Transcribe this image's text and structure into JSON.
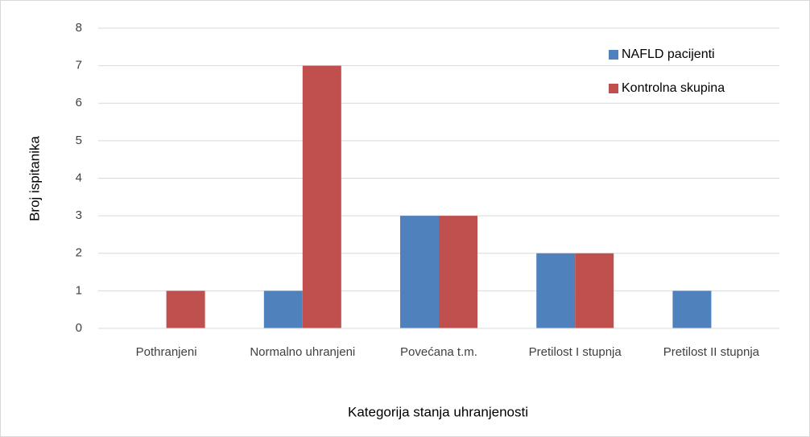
{
  "chart_data": {
    "type": "bar",
    "x_label": "Kategorija stanja uhranjenosti",
    "y_label": "Broj ispitanika",
    "categories": [
      "Pothranjeni",
      "Normalno uhranjeni",
      "Povećana t.m.",
      "Pretilost I stupnja",
      "Pretilost II stupnja"
    ],
    "series": [
      {
        "name": "NAFLD pacijenti",
        "color": "#4f81bd",
        "values": [
          0,
          1,
          3,
          2,
          1
        ]
      },
      {
        "name": "Kontrolna skupina",
        "color": "#c0504d",
        "values": [
          1,
          7,
          3,
          2,
          0
        ]
      }
    ],
    "ylim": [
      0,
      8
    ],
    "yticks": [
      0,
      1,
      2,
      3,
      4,
      5,
      6,
      7,
      8
    ],
    "grid": true,
    "legend": "top-right"
  }
}
